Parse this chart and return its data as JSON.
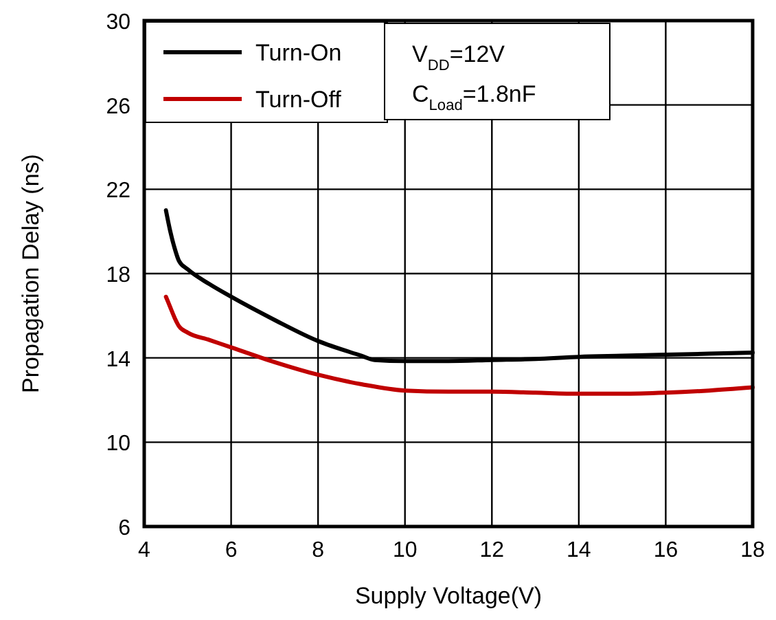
{
  "chart_data": {
    "type": "line",
    "xlabel": "Supply Voltage(V)",
    "ylabel": "Propagation Delay (ns)",
    "xlim": [
      4,
      18
    ],
    "xticks": [
      4,
      6,
      8,
      10,
      12,
      14,
      16,
      18
    ],
    "ylim": [
      6,
      30
    ],
    "yticks": [
      6,
      10,
      14,
      18,
      22,
      26,
      30
    ],
    "grid": true,
    "legend": "top left",
    "line_style": "solid",
    "marker": "none",
    "annotations": [
      "V$_{DD}$=12V",
      "C$_{Load}$=1.8nF"
    ],
    "series": [
      {
        "name": "Turn-On",
        "color": "#000000",
        "x": [
          4.5,
          4.6,
          4.7,
          4.8,
          5,
          5.5,
          6,
          7,
          8,
          9,
          9.3,
          10,
          11,
          12,
          13,
          14,
          15,
          16,
          17,
          18
        ],
        "values": [
          21,
          20,
          19.2,
          18.6,
          18.2,
          17.5,
          16.9,
          15.8,
          14.8,
          14.1,
          13.9,
          13.85,
          13.85,
          13.9,
          13.95,
          14.05,
          14.1,
          14.15,
          14.2,
          14.25
        ]
      },
      {
        "name": "Turn-Off",
        "color": "#c00000",
        "x": [
          4.5,
          4.6,
          4.7,
          4.8,
          5,
          5.5,
          6,
          7,
          8,
          9,
          10,
          11,
          12,
          13,
          14,
          15,
          16,
          17,
          18
        ],
        "values": [
          16.9,
          16.4,
          15.9,
          15.5,
          15.2,
          14.85,
          14.5,
          13.8,
          13.2,
          12.75,
          12.45,
          12.4,
          12.4,
          12.35,
          12.3,
          12.3,
          12.35,
          12.45,
          12.6
        ]
      }
    ]
  }
}
